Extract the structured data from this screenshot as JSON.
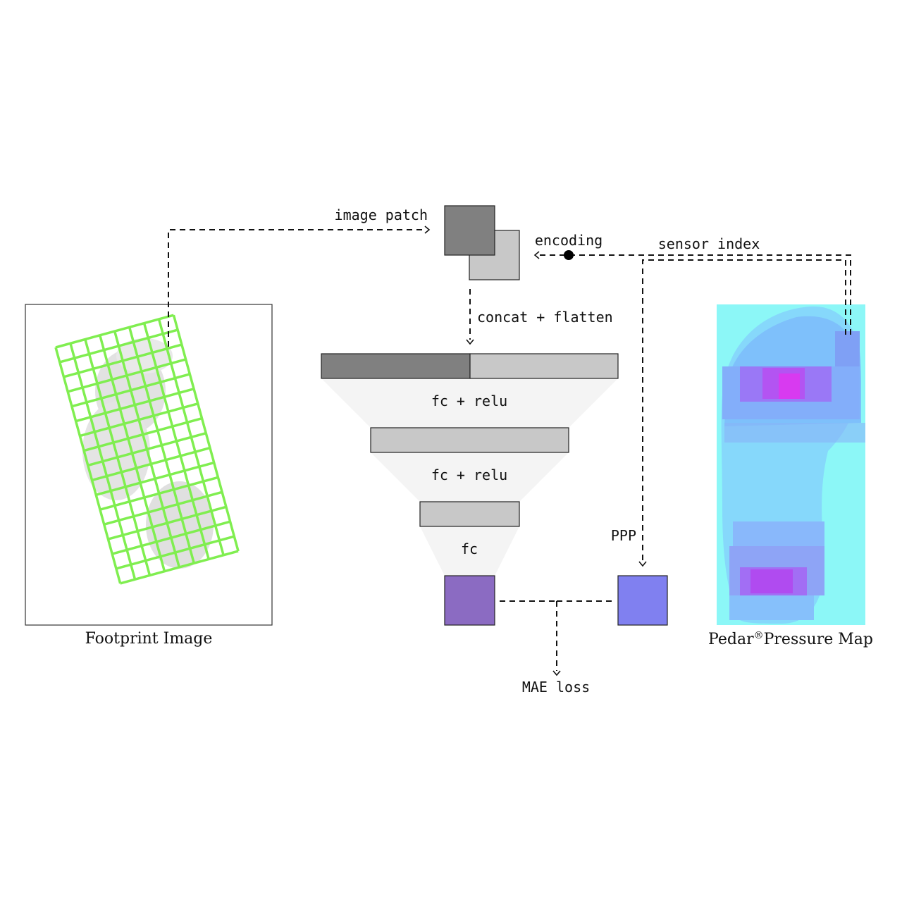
{
  "labels": {
    "image_patch": "image patch",
    "encoding": "encoding",
    "sensor_index": "sensor index",
    "concat_flatten": "concat + flatten",
    "fc_relu_1": "fc + relu",
    "fc_relu_2": "fc + relu",
    "fc": "fc",
    "ppp": "PPP",
    "mae_loss": "MAE loss",
    "footprint_caption": "Footprint Image",
    "pedar_caption_main": "Pedar",
    "pedar_caption_mark": "®",
    "pedar_caption_rest": "Pressure Map"
  },
  "colors": {
    "patch_dark": "#808080",
    "patch_light": "#c8c8c8",
    "funnel_bg": "#f4f4f4",
    "output_purple": "#8b6bc2",
    "target_blue": "#8080f0",
    "grid_green": "#80ee50",
    "pressure_bg": "#8cf7f7"
  }
}
